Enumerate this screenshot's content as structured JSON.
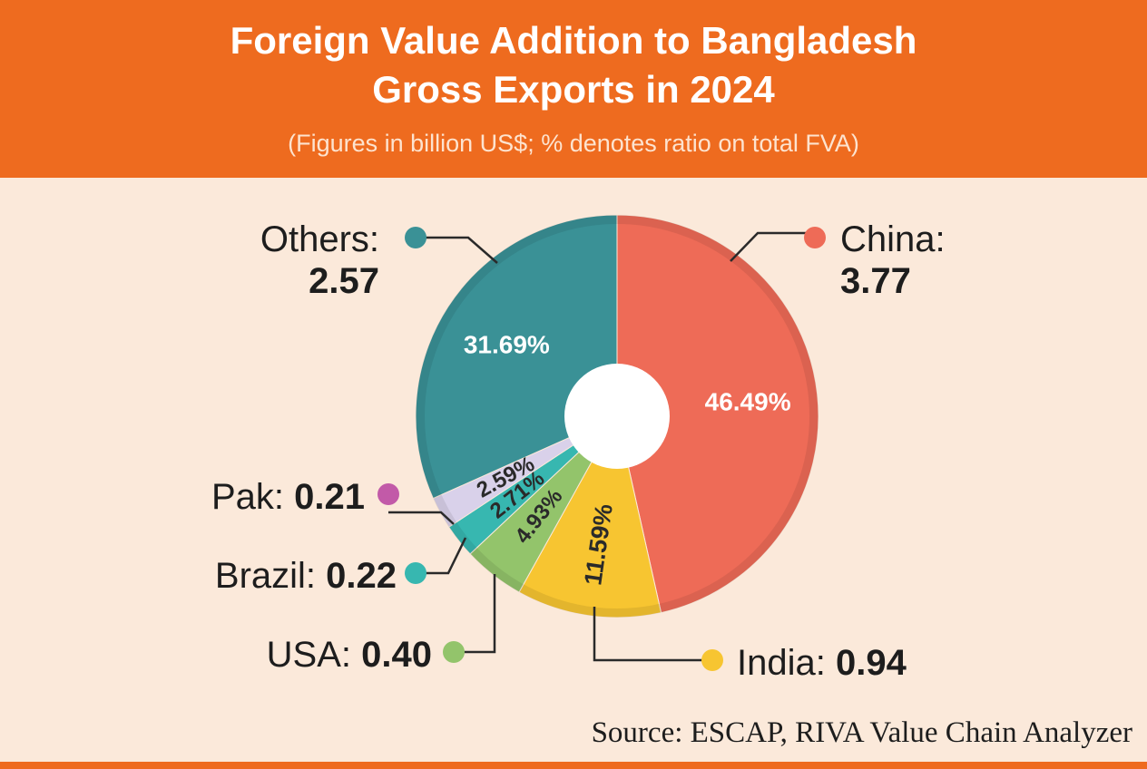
{
  "header": {
    "title_line1": "Foreign Value Addition to Bangladesh",
    "title_line2": "Gross Exports in 2024",
    "subtitle": "(Figures in billion US$; % denotes ratio on total FVA)"
  },
  "source": "Source: ESCAP, RIVA Value Chain Analyzer",
  "chart_data": {
    "type": "pie",
    "title": "Foreign Value Addition to Bangladesh Gross Exports in 2024",
    "subtitle": "(Figures in billion US$; % denotes ratio on total FVA)",
    "unit": "billion US$",
    "slices": [
      {
        "name": "China",
        "value": 3.77,
        "value_text": "3.77",
        "percent": 46.49,
        "percent_text": "46.49%",
        "color": "#ee6b57"
      },
      {
        "name": "India",
        "value": 0.94,
        "value_text": "0.94",
        "percent": 11.59,
        "percent_text": "11.59%",
        "color": "#f7c531"
      },
      {
        "name": "USA",
        "value": 0.4,
        "value_text": "0.40",
        "percent": 4.93,
        "percent_text": "4.93%",
        "color": "#93c46b"
      },
      {
        "name": "Brazil",
        "value": 0.22,
        "value_text": "0.22",
        "percent": 2.71,
        "percent_text": "2.71%",
        "color": "#37b7b0"
      },
      {
        "name": "Pak",
        "value": 0.21,
        "value_text": "0.21",
        "percent": 2.59,
        "percent_text": "2.59%",
        "color": "#d9d1ea"
      },
      {
        "name": "Others",
        "value": 2.57,
        "value_text": "2.57",
        "percent": 31.69,
        "percent_text": "31.69%",
        "color": "#3a9196"
      }
    ],
    "marker_colors": {
      "China": "#ee6b57",
      "India": "#f7c531",
      "USA": "#93c46b",
      "Brazil": "#37b7b0",
      "Pak": "#c25aa8",
      "Others": "#3a9196"
    }
  }
}
